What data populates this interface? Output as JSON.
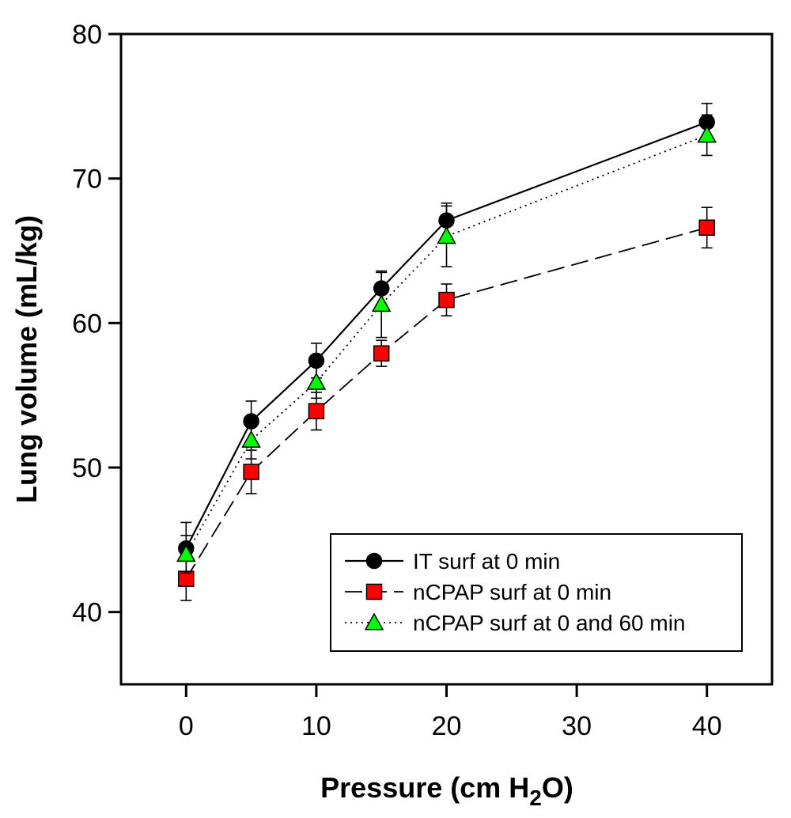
{
  "chart_data": {
    "type": "line",
    "title": "",
    "xlabel": "Pressure (cm H",
    "xlabel_sub": "2",
    "xlabel_end": "O)",
    "ylabel": "Lung volume (mL/kg)",
    "xlim": [
      -5,
      45
    ],
    "ylim": [
      35,
      80
    ],
    "x_ticks": [
      0,
      10,
      20,
      30,
      40
    ],
    "x_tick_labels": [
      "0",
      "10",
      "20",
      "30",
      "40"
    ],
    "y_ticks": [
      40,
      50,
      60,
      70,
      80
    ],
    "y_tick_labels": [
      "40",
      "50",
      "60",
      "70",
      "80"
    ],
    "grid": false,
    "legend_position": "bottom-right",
    "x": [
      0,
      5,
      10,
      15,
      20,
      40
    ],
    "series": [
      {
        "name": "IT surf at 0 min",
        "marker": "circle",
        "line_style": "solid",
        "color": "#000000",
        "values": [
          44.4,
          53.2,
          57.4,
          62.4,
          67.1,
          73.9
        ],
        "error": [
          1.8,
          1.4,
          1.2,
          1.1,
          1.2,
          1.3
        ]
      },
      {
        "name": "nCPAP surf at 0 min",
        "marker": "square",
        "line_style": "dashed",
        "color": "#ff0000",
        "values": [
          42.3,
          49.7,
          53.9,
          57.9,
          61.6,
          66.6
        ],
        "error": [
          1.5,
          1.5,
          1.3,
          0.9,
          1.1,
          1.4
        ]
      },
      {
        "name": "nCPAP surf at 0 and 60 min",
        "marker": "triangle",
        "line_style": "dotted",
        "color": "#00ff00",
        "values": [
          44.0,
          51.9,
          55.9,
          61.3,
          66.0,
          73.0
        ],
        "error": [
          1.3,
          1.3,
          1.1,
          2.3,
          2.1,
          1.4
        ]
      }
    ]
  }
}
